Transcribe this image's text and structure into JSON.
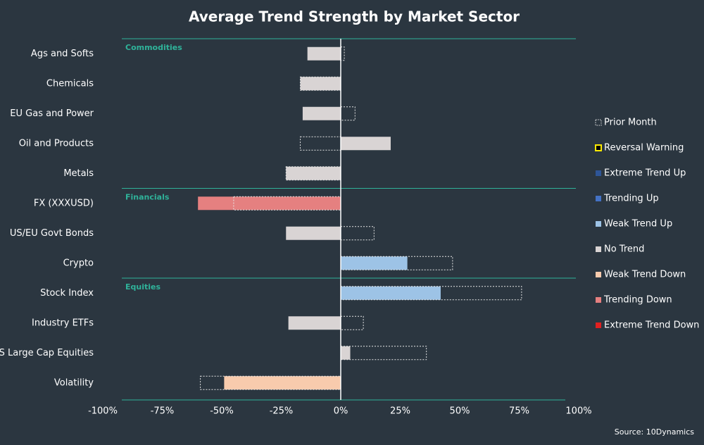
{
  "chart_data": {
    "type": "bar",
    "orientation": "horizontal",
    "title": "Average Trend Strength by Market Sector",
    "categories": [
      "Ags and Softs",
      "Chemicals",
      "EU Gas and Power",
      "Oil and Products",
      "Metals",
      "FX (XXXUSD)",
      "US/EU Govt Bonds",
      "Crypto",
      "Stock Index",
      "Industry ETFs",
      "US Large Cap Equities",
      "Volatility"
    ],
    "group_labels": [
      "Commodities",
      null,
      null,
      null,
      null,
      "Financials",
      null,
      null,
      "Equities",
      null,
      null,
      null
    ],
    "series": [
      {
        "values": [
          -14,
          -17,
          -16,
          21,
          -23,
          -60,
          -23,
          28,
          42,
          -22,
          4,
          -49
        ],
        "colors": [
          "#d9d4d4",
          "#d9d4d4",
          "#d9d4d4",
          "#d9d4d4",
          "#d9d4d4",
          "#e58080",
          "#d9d4d4",
          "#9dc3e6",
          "#9dc3e6",
          "#d9d4d4",
          "#d9d4d4",
          "#f8cbad"
        ]
      },
      {
        "name": "Prior Month",
        "style": "dotted",
        "color": "#e6e6e6",
        "values": [
          1.5,
          -17,
          6,
          -17,
          -23,
          -45,
          14,
          47,
          76,
          9.5,
          36,
          -59
        ]
      }
    ],
    "legend": [
      {
        "name": "Prior Month",
        "style": "dotted",
        "color": "#e6e6e6"
      },
      {
        "name": "Reversal Warning",
        "style": "outline",
        "color": "#ffea00"
      },
      {
        "name": "Extreme Trend Up",
        "color": "#2e5597"
      },
      {
        "name": "Trending Up",
        "color": "#4472c4"
      },
      {
        "name": "Weak Trend Up",
        "color": "#9dc3e6"
      },
      {
        "name": "No Trend",
        "color": "#d9d4d4"
      },
      {
        "name": "Weak Trend Down",
        "color": "#f8cbad"
      },
      {
        "name": "Trending Down",
        "color": "#e58080"
      },
      {
        "name": "Extreme Trend Down",
        "color": "#e02020"
      }
    ],
    "xlim": [
      -100,
      100
    ],
    "xticks": [
      {
        "value": -100,
        "label": "-100%"
      },
      {
        "value": -75,
        "label": "-75%"
      },
      {
        "value": -50,
        "label": "-50%"
      },
      {
        "value": -25,
        "label": "-25%"
      },
      {
        "value": 0,
        "label": "0%"
      },
      {
        "value": 25,
        "label": "25%"
      },
      {
        "value": 50,
        "label": "50%"
      },
      {
        "value": 75,
        "label": "75%"
      },
      {
        "value": 100,
        "label": "100%"
      }
    ],
    "source": "Source: 10Dynamics"
  }
}
